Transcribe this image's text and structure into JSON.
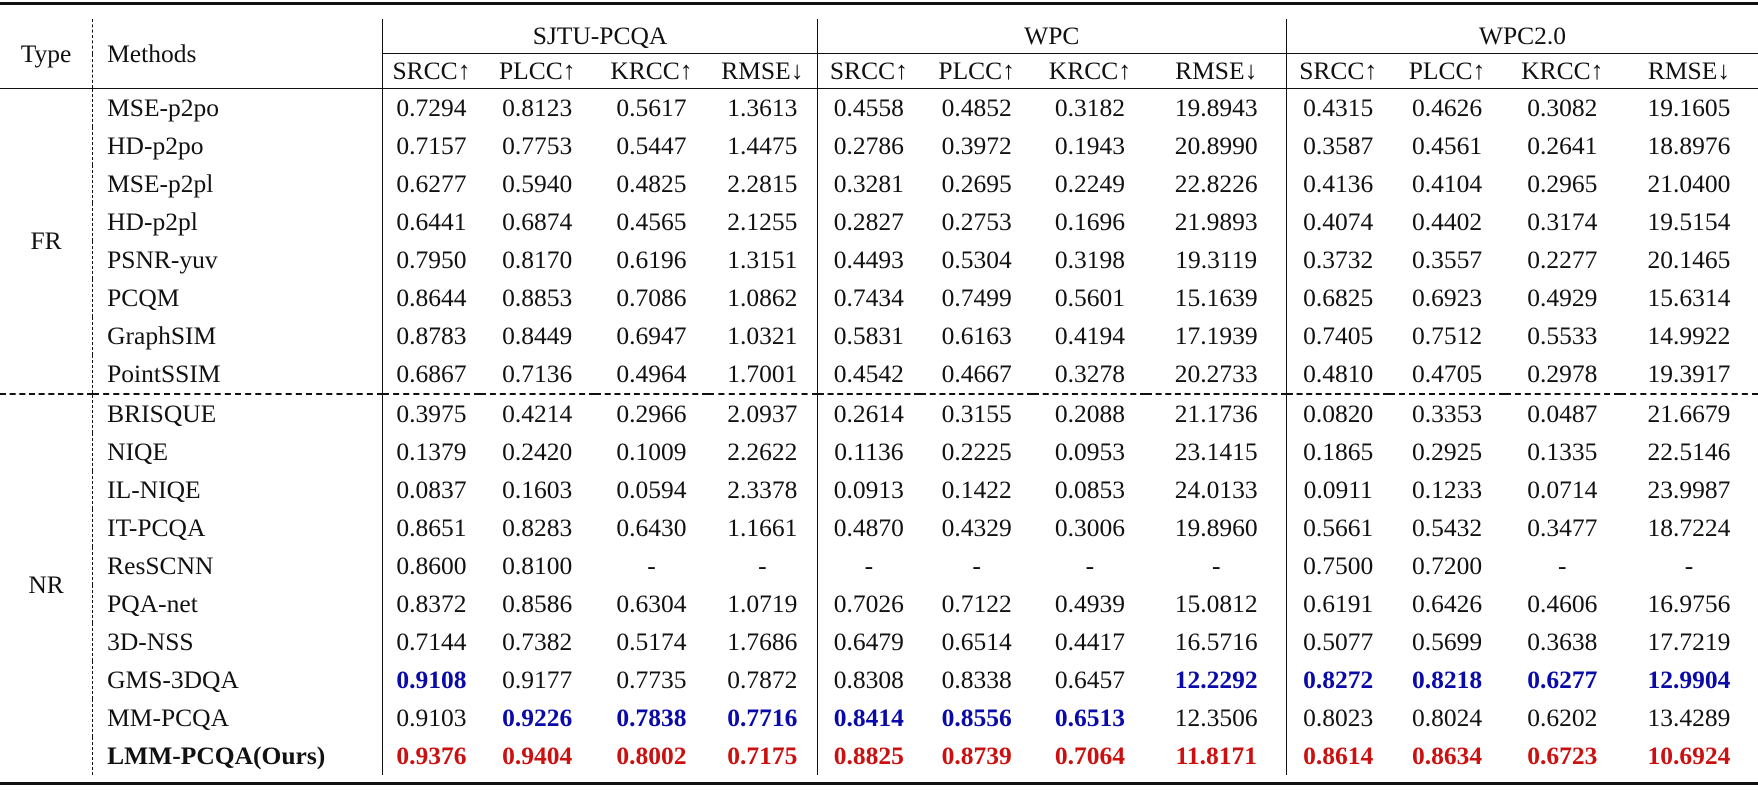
{
  "table": {
    "header": {
      "type_label": "Type",
      "methods_label": "Methods",
      "datasets": [
        {
          "name": "SJTU-PCQA",
          "metrics": [
            "SRCC↑",
            "PLCC↑",
            "KRCC↑",
            "RMSE↓"
          ]
        },
        {
          "name": "WPC",
          "metrics": [
            "SRCC↑",
            "PLCC↑",
            "KRCC↑",
            "RMSE↓"
          ]
        },
        {
          "name": "WPC2.0",
          "metrics": [
            "SRCC↑",
            "PLCC↑",
            "KRCC↑",
            "RMSE↓"
          ]
        }
      ]
    },
    "groups": [
      {
        "type": "FR",
        "rows": [
          {
            "method": "MSE-p2po",
            "values": [
              "0.7294",
              "0.8123",
              "0.5617",
              "1.3613",
              "0.4558",
              "0.4852",
              "0.3182",
              "19.8943",
              "0.4315",
              "0.4626",
              "0.3082",
              "19.1605"
            ]
          },
          {
            "method": "HD-p2po",
            "values": [
              "0.7157",
              "0.7753",
              "0.5447",
              "1.4475",
              "0.2786",
              "0.3972",
              "0.1943",
              "20.8990",
              "0.3587",
              "0.4561",
              "0.2641",
              "18.8976"
            ]
          },
          {
            "method": "MSE-p2pl",
            "values": [
              "0.6277",
              "0.5940",
              "0.4825",
              "2.2815",
              "0.3281",
              "0.2695",
              "0.2249",
              "22.8226",
              "0.4136",
              "0.4104",
              "0.2965",
              "21.0400"
            ]
          },
          {
            "method": "HD-p2pl",
            "values": [
              "0.6441",
              "0.6874",
              "0.4565",
              "2.1255",
              "0.2827",
              "0.2753",
              "0.1696",
              "21.9893",
              "0.4074",
              "0.4402",
              "0.3174",
              "19.5154"
            ]
          },
          {
            "method": "PSNR-yuv",
            "values": [
              "0.7950",
              "0.8170",
              "0.6196",
              "1.3151",
              "0.4493",
              "0.5304",
              "0.3198",
              "19.3119",
              "0.3732",
              "0.3557",
              "0.2277",
              "20.1465"
            ]
          },
          {
            "method": "PCQM",
            "values": [
              "0.8644",
              "0.8853",
              "0.7086",
              "1.0862",
              "0.7434",
              "0.7499",
              "0.5601",
              "15.1639",
              "0.6825",
              "0.6923",
              "0.4929",
              "15.6314"
            ]
          },
          {
            "method": "GraphSIM",
            "values": [
              "0.8783",
              "0.8449",
              "0.6947",
              "1.0321",
              "0.5831",
              "0.6163",
              "0.4194",
              "17.1939",
              "0.7405",
              "0.7512",
              "0.5533",
              "14.9922"
            ]
          },
          {
            "method": "PointSSIM",
            "values": [
              "0.6867",
              "0.7136",
              "0.4964",
              "1.7001",
              "0.4542",
              "0.4667",
              "0.3278",
              "20.2733",
              "0.4810",
              "0.4705",
              "0.2978",
              "19.3917"
            ]
          }
        ]
      },
      {
        "type": "NR",
        "rows": [
          {
            "method": "BRISQUE",
            "values": [
              "0.3975",
              "0.4214",
              "0.2966",
              "2.0937",
              "0.2614",
              "0.3155",
              "0.2088",
              "21.1736",
              "0.0820",
              "0.3353",
              "0.0487",
              "21.6679"
            ]
          },
          {
            "method": "NIQE",
            "values": [
              "0.1379",
              "0.2420",
              "0.1009",
              "2.2622",
              "0.1136",
              "0.2225",
              "0.0953",
              "23.1415",
              "0.1865",
              "0.2925",
              "0.1335",
              "22.5146"
            ]
          },
          {
            "method": "IL-NIQE",
            "values": [
              "0.0837",
              "0.1603",
              "0.0594",
              "2.3378",
              "0.0913",
              "0.1422",
              "0.0853",
              "24.0133",
              "0.0911",
              "0.1233",
              "0.0714",
              "23.9987"
            ]
          },
          {
            "method": "IT-PCQA",
            "values": [
              "0.8651",
              "0.8283",
              "0.6430",
              "1.1661",
              "0.4870",
              "0.4329",
              "0.3006",
              "19.8960",
              "0.5661",
              "0.5432",
              "0.3477",
              "18.7224"
            ]
          },
          {
            "method": "ResSCNN",
            "values": [
              "0.8600",
              "0.8100",
              "-",
              "-",
              "-",
              "-",
              "-",
              "-",
              "0.7500",
              "0.7200",
              "-",
              "-"
            ]
          },
          {
            "method": "PQA-net",
            "values": [
              "0.8372",
              "0.8586",
              "0.6304",
              "1.0719",
              "0.7026",
              "0.7122",
              "0.4939",
              "15.0812",
              "0.6191",
              "0.6426",
              "0.4606",
              "16.9756"
            ]
          },
          {
            "method": "3D-NSS",
            "values": [
              "0.7144",
              "0.7382",
              "0.5174",
              "1.7686",
              "0.6479",
              "0.6514",
              "0.4417",
              "16.5716",
              "0.5077",
              "0.5699",
              "0.3638",
              "17.7219"
            ]
          },
          {
            "method": "GMS-3DQA",
            "values": [
              "0.9108",
              "0.9177",
              "0.7735",
              "0.7872",
              "0.8308",
              "0.8338",
              "0.6457",
              "12.2292",
              "0.8272",
              "0.8218",
              "0.6277",
              "12.9904"
            ],
            "highlight": [
              "second",
              "",
              "",
              "",
              "",
              "",
              "",
              "second",
              "second",
              "second",
              "second",
              "second"
            ]
          },
          {
            "method": "MM-PCQA",
            "values": [
              "0.9103",
              "0.9226",
              "0.7838",
              "0.7716",
              "0.8414",
              "0.8556",
              "0.6513",
              "12.3506",
              "0.8023",
              "0.8024",
              "0.6202",
              "13.4289"
            ],
            "highlight": [
              "",
              "second",
              "second",
              "second",
              "second",
              "second",
              "second",
              "",
              "",
              "",
              "",
              ""
            ]
          },
          {
            "method": "LMM-PCQA(Ours)",
            "values": [
              "0.9376",
              "0.9404",
              "0.8002",
              "0.7175",
              "0.8825",
              "0.8739",
              "0.7064",
              "11.8171",
              "0.8614",
              "0.8634",
              "0.6723",
              "10.6924"
            ],
            "highlight": [
              "best",
              "best",
              "best",
              "best",
              "best",
              "best",
              "best",
              "best",
              "best",
              "best",
              "best",
              "best"
            ],
            "bold_method": true
          }
        ]
      }
    ],
    "colors": {
      "best": "#cc1010",
      "second": "#0a0aaa",
      "text": "#111111"
    }
  }
}
